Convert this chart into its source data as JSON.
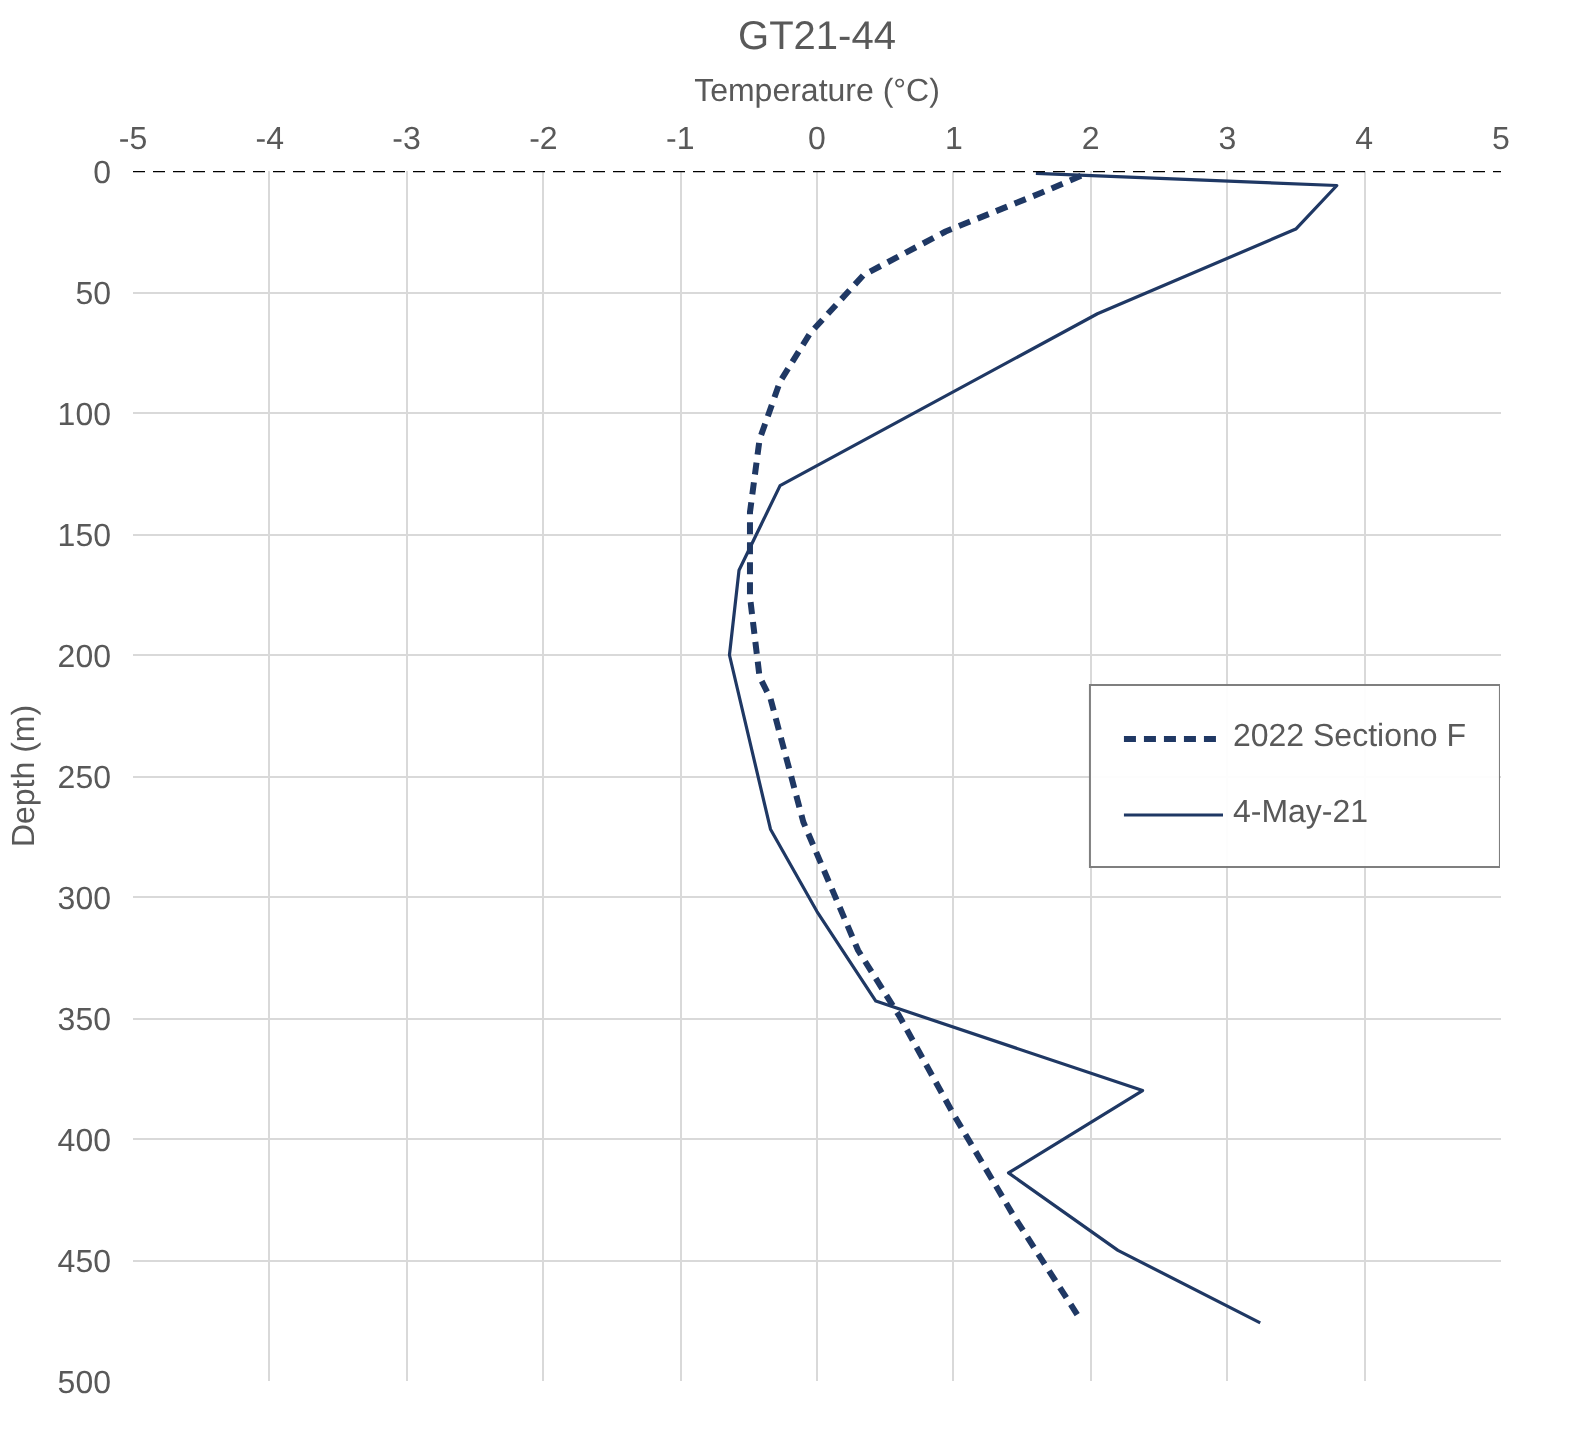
{
  "chart_data": {
    "type": "line",
    "title": "GT21-44",
    "xlabel": "Temperature (°C)",
    "ylabel": "Depth (m)",
    "xlim": [
      -5,
      5
    ],
    "xticks": [
      -5,
      -4,
      -3,
      -2,
      -1,
      0,
      1,
      2,
      3,
      4,
      5
    ],
    "ylim": [
      500,
      0
    ],
    "yticks": [
      0,
      50,
      100,
      150,
      200,
      250,
      300,
      350,
      400,
      450,
      500
    ],
    "grid": true,
    "legend": "right",
    "ref_lines": [
      {
        "axis": "y",
        "value": 0,
        "color": "#000000",
        "line_style": "dashed"
      }
    ],
    "series": [
      {
        "name": "2022 Sectiono F",
        "color": "#1f3864",
        "line_style": "dashed",
        "x": [
          1.93,
          1.64,
          0.94,
          0.34,
          -0.05,
          -0.27,
          -0.42,
          -0.49,
          -0.49,
          -0.42,
          -0.34,
          -0.1,
          0.3,
          0.6,
          1.0,
          1.44,
          1.93
        ],
        "values": [
          2,
          9,
          25,
          43,
          67,
          87,
          111,
          141,
          176,
          209,
          218,
          269,
          322,
          349,
          390,
          432,
          475
        ]
      },
      {
        "name": "4-May-21",
        "color": "#1f3864",
        "line_style": "solid",
        "x": [
          1.6,
          3.8,
          3.5,
          2.05,
          -0.27,
          -0.57,
          -0.64,
          -0.34,
          0,
          0.43,
          2.38,
          1.4,
          2.2,
          3.24
        ],
        "values": [
          1,
          6,
          24,
          59,
          130,
          165,
          200,
          272,
          306,
          343,
          380,
          414,
          446,
          476
        ]
      }
    ]
  }
}
